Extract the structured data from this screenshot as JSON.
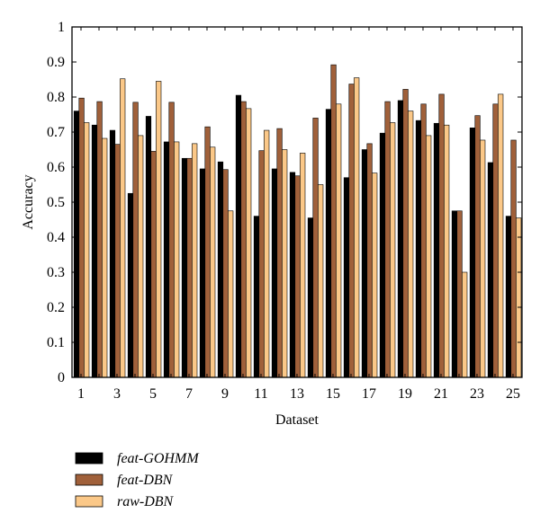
{
  "chart_data": {
    "type": "bar",
    "xlabel": "Dataset",
    "ylabel": "Accuracy",
    "ylim": [
      0,
      1
    ],
    "yticks": [
      "0",
      "0.1",
      "0.2",
      "0.3",
      "0.4",
      "0.5",
      "0.6",
      "0.7",
      "0.8",
      "0.9",
      "1"
    ],
    "xtick_labels": [
      "1",
      "3",
      "5",
      "7",
      "9",
      "11",
      "13",
      "15",
      "17",
      "19",
      "21",
      "23",
      "25"
    ],
    "categories": [
      "1",
      "2",
      "3",
      "4",
      "5",
      "6",
      "7",
      "8",
      "9",
      "10",
      "11",
      "12",
      "13",
      "14",
      "15",
      "16",
      "17",
      "18",
      "19",
      "20",
      "21",
      "22",
      "23",
      "24",
      "25"
    ],
    "grid": false,
    "legend_position": "bottom-left",
    "series": [
      {
        "name": "feat-GOHMM",
        "color": "#000000",
        "values": [
          0.76,
          0.72,
          0.705,
          0.525,
          0.745,
          0.672,
          0.625,
          0.595,
          0.615,
          0.805,
          0.46,
          0.595,
          0.585,
          0.455,
          0.765,
          0.57,
          0.65,
          0.697,
          0.79,
          0.733,
          0.725,
          0.475,
          0.712,
          0.613,
          0.46
        ]
      },
      {
        "name": "feat-DBN",
        "color": "#a0603a",
        "values": [
          0.797,
          0.787,
          0.665,
          0.785,
          0.645,
          0.785,
          0.625,
          0.715,
          0.593,
          0.787,
          0.647,
          0.71,
          0.575,
          0.74,
          0.892,
          0.837,
          0.667,
          0.787,
          0.822,
          0.78,
          0.808,
          0.475,
          0.747,
          0.78,
          0.677
        ]
      },
      {
        "name": "raw-DBN",
        "color": "#fbc888",
        "values": [
          0.727,
          0.682,
          0.852,
          0.69,
          0.845,
          0.672,
          0.667,
          0.657,
          0.475,
          0.767,
          0.705,
          0.65,
          0.64,
          0.55,
          0.78,
          0.855,
          0.583,
          0.727,
          0.76,
          0.69,
          0.72,
          0.3,
          0.677,
          0.808,
          0.455
        ]
      }
    ]
  }
}
